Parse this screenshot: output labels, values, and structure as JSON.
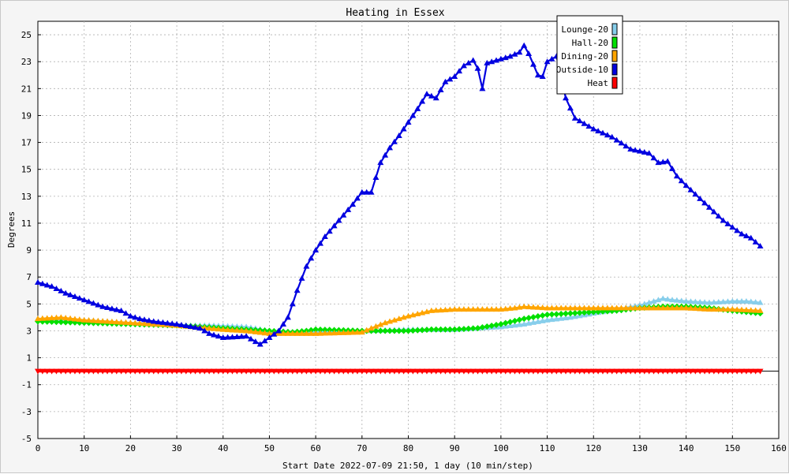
{
  "chart_data": {
    "type": "line",
    "title": "Heating in Essex",
    "xlabel": "Start Date 2022-07-09 21:50, 1 day (10 min/step)",
    "ylabel": "Degrees",
    "xlim": [
      0,
      160
    ],
    "ylim": [
      -5,
      26
    ],
    "xticks": [
      0,
      10,
      20,
      30,
      40,
      50,
      60,
      70,
      80,
      90,
      100,
      110,
      120,
      130,
      140,
      150,
      160
    ],
    "yticks": [
      -5,
      -3,
      -1,
      1,
      3,
      5,
      7,
      9,
      11,
      13,
      15,
      17,
      19,
      21,
      23,
      25
    ],
    "grid": true,
    "legend_position": "top-right",
    "series": [
      {
        "name": "Lounge-20",
        "color": "#87ceeb",
        "marker": "triangle",
        "points": [
          [
            0,
            3.9
          ],
          [
            10,
            3.8
          ],
          [
            20,
            3.6
          ],
          [
            30,
            3.4
          ],
          [
            37,
            3.4
          ],
          [
            45,
            3.3
          ],
          [
            50,
            3.0
          ],
          [
            55,
            2.9
          ],
          [
            60,
            3.0
          ],
          [
            70,
            3.0
          ],
          [
            80,
            3.1
          ],
          [
            90,
            3.1
          ],
          [
            95,
            3.2
          ],
          [
            100,
            3.3
          ],
          [
            105,
            3.5
          ],
          [
            110,
            3.8
          ],
          [
            115,
            4.0
          ],
          [
            120,
            4.3
          ],
          [
            125,
            4.6
          ],
          [
            130,
            4.9
          ],
          [
            133,
            5.2
          ],
          [
            135,
            5.4
          ],
          [
            137,
            5.3
          ],
          [
            140,
            5.2
          ],
          [
            145,
            5.1
          ],
          [
            150,
            5.2
          ],
          [
            153,
            5.2
          ],
          [
            156,
            5.1
          ]
        ]
      },
      {
        "name": "Hall-20",
        "color": "#00e000",
        "marker": "diamond",
        "points": [
          [
            0,
            3.7
          ],
          [
            10,
            3.6
          ],
          [
            20,
            3.5
          ],
          [
            30,
            3.4
          ],
          [
            40,
            3.2
          ],
          [
            50,
            3.0
          ],
          [
            55,
            2.9
          ],
          [
            58,
            3.0
          ],
          [
            60,
            3.1
          ],
          [
            70,
            3.0
          ],
          [
            75,
            3.0
          ],
          [
            80,
            3.0
          ],
          [
            85,
            3.1
          ],
          [
            90,
            3.1
          ],
          [
            95,
            3.2
          ],
          [
            100,
            3.5
          ],
          [
            105,
            3.9
          ],
          [
            110,
            4.2
          ],
          [
            115,
            4.3
          ],
          [
            120,
            4.4
          ],
          [
            125,
            4.5
          ],
          [
            130,
            4.7
          ],
          [
            135,
            4.8
          ],
          [
            140,
            4.8
          ],
          [
            145,
            4.7
          ],
          [
            150,
            4.5
          ],
          [
            156,
            4.3
          ]
        ]
      },
      {
        "name": "Dining-20",
        "color": "#ffa500",
        "marker": "triangle",
        "points": [
          [
            0,
            3.9
          ],
          [
            5,
            4.0
          ],
          [
            10,
            3.8
          ],
          [
            20,
            3.6
          ],
          [
            30,
            3.4
          ],
          [
            40,
            3.1
          ],
          [
            45,
            3.0
          ],
          [
            50,
            2.8
          ],
          [
            55,
            2.8
          ],
          [
            60,
            2.8
          ],
          [
            70,
            2.9
          ],
          [
            72,
            3.2
          ],
          [
            75,
            3.6
          ],
          [
            80,
            4.1
          ],
          [
            85,
            4.5
          ],
          [
            90,
            4.6
          ],
          [
            95,
            4.6
          ],
          [
            100,
            4.6
          ],
          [
            103,
            4.7
          ],
          [
            105,
            4.8
          ],
          [
            110,
            4.7
          ],
          [
            120,
            4.7
          ],
          [
            130,
            4.7
          ],
          [
            140,
            4.7
          ],
          [
            145,
            4.6
          ],
          [
            150,
            4.6
          ],
          [
            156,
            4.5
          ]
        ]
      },
      {
        "name": "Outside-10",
        "color": "#0000e0",
        "marker": "triangle",
        "points": [
          [
            0,
            6.6
          ],
          [
            3,
            6.3
          ],
          [
            6,
            5.8
          ],
          [
            10,
            5.3
          ],
          [
            14,
            4.8
          ],
          [
            18,
            4.5
          ],
          [
            20,
            4.1
          ],
          [
            22,
            3.9
          ],
          [
            25,
            3.7
          ],
          [
            30,
            3.5
          ],
          [
            35,
            3.2
          ],
          [
            37,
            2.8
          ],
          [
            40,
            2.5
          ],
          [
            45,
            2.6
          ],
          [
            48,
            2.0
          ],
          [
            50,
            2.5
          ],
          [
            52,
            3.0
          ],
          [
            54,
            4.0
          ],
          [
            56,
            6.0
          ],
          [
            58,
            7.8
          ],
          [
            60,
            9.0
          ],
          [
            62,
            10.0
          ],
          [
            65,
            11.2
          ],
          [
            68,
            12.4
          ],
          [
            70,
            13.3
          ],
          [
            72,
            13.3
          ],
          [
            74,
            15.5
          ],
          [
            76,
            16.6
          ],
          [
            78,
            17.5
          ],
          [
            80,
            18.5
          ],
          [
            82,
            19.5
          ],
          [
            84,
            20.6
          ],
          [
            86,
            20.3
          ],
          [
            88,
            21.5
          ],
          [
            90,
            21.9
          ],
          [
            92,
            22.7
          ],
          [
            94,
            23.1
          ],
          [
            95,
            22.5
          ],
          [
            96,
            21.0
          ],
          [
            97,
            22.9
          ],
          [
            100,
            23.2
          ],
          [
            102,
            23.4
          ],
          [
            104,
            23.7
          ],
          [
            105,
            24.2
          ],
          [
            106,
            23.6
          ],
          [
            108,
            22.0
          ],
          [
            109,
            21.9
          ],
          [
            110,
            23.0
          ],
          [
            112,
            23.4
          ],
          [
            113,
            22.0
          ],
          [
            114,
            20.3
          ],
          [
            116,
            18.8
          ],
          [
            118,
            18.4
          ],
          [
            120,
            18.0
          ],
          [
            124,
            17.4
          ],
          [
            128,
            16.5
          ],
          [
            132,
            16.2
          ],
          [
            134,
            15.5
          ],
          [
            136,
            15.6
          ],
          [
            138,
            14.5
          ],
          [
            140,
            13.8
          ],
          [
            144,
            12.5
          ],
          [
            148,
            11.2
          ],
          [
            152,
            10.2
          ],
          [
            154,
            9.9
          ],
          [
            156,
            9.3
          ]
        ]
      },
      {
        "name": "Heat",
        "color": "#ff0000",
        "marker": "triangle-down",
        "points": [
          [
            0,
            0
          ],
          [
            156,
            0
          ]
        ]
      }
    ]
  }
}
